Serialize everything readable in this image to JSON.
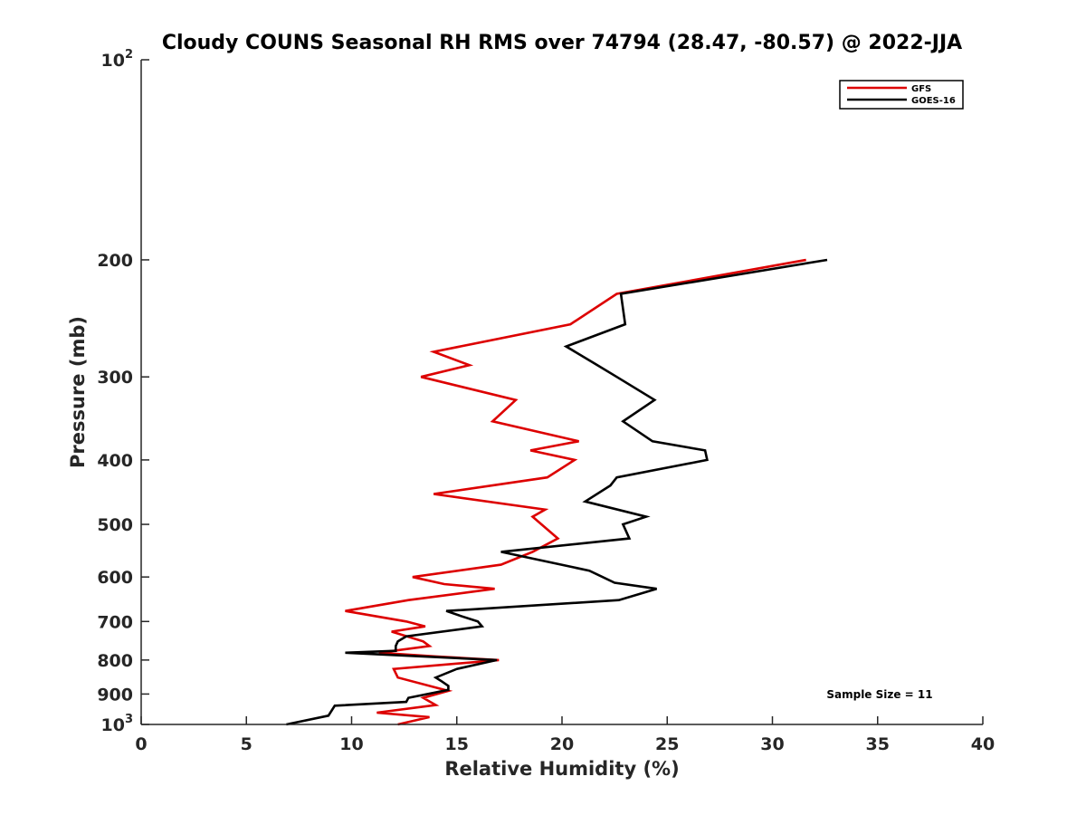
{
  "chart_data": {
    "type": "line",
    "title": "Cloudy COUNS Seasonal RH RMS over 74794 (28.47, -80.57) @ 2022-JJA",
    "xlabel": "Relative Humidity (%)",
    "ylabel": "Pressure (mb)",
    "xlim": [
      0,
      40
    ],
    "ylim": [
      100,
      1000
    ],
    "yscale": "log",
    "y_reversed": true,
    "xticks": [
      0,
      5,
      10,
      15,
      20,
      25,
      30,
      35,
      40
    ],
    "xtick_labels": [
      "0",
      "5",
      "10",
      "15",
      "20",
      "25",
      "30",
      "35",
      "40"
    ],
    "yticks": [
      100,
      200,
      300,
      400,
      500,
      600,
      700,
      800,
      900,
      1000
    ],
    "ytick_labels": [
      {
        "base": "10",
        "exp": "2"
      },
      {
        "base": "200",
        "exp": ""
      },
      {
        "base": "300",
        "exp": ""
      },
      {
        "base": "400",
        "exp": ""
      },
      {
        "base": "500",
        "exp": ""
      },
      {
        "base": "600",
        "exp": ""
      },
      {
        "base": "700",
        "exp": ""
      },
      {
        "base": "800",
        "exp": ""
      },
      {
        "base": "900",
        "exp": ""
      },
      {
        "base": "10",
        "exp": "3"
      }
    ],
    "legend_position": "top-right",
    "annotation": "Sample Size = 11",
    "series": [
      {
        "name": "GFS",
        "color": "#dd0000",
        "points": [
          [
            31.6,
            200
          ],
          [
            22.6,
            225
          ],
          [
            20.4,
            250
          ],
          [
            13.9,
            275
          ],
          [
            15.6,
            288
          ],
          [
            13.3,
            300
          ],
          [
            17.8,
            325
          ],
          [
            16.7,
            350
          ],
          [
            20.8,
            375
          ],
          [
            18.5,
            387
          ],
          [
            20.6,
            400
          ],
          [
            19.3,
            425
          ],
          [
            13.9,
            450
          ],
          [
            19.2,
            475
          ],
          [
            18.6,
            487
          ],
          [
            19.8,
            525
          ],
          [
            18.6,
            550
          ],
          [
            17.1,
            575
          ],
          [
            12.9,
            600
          ],
          [
            14.4,
            615
          ],
          [
            16.8,
            625
          ],
          [
            12.7,
            650
          ],
          [
            9.7,
            675
          ],
          [
            12.6,
            700
          ],
          [
            13.5,
            712
          ],
          [
            11.9,
            725
          ],
          [
            13.4,
            750
          ],
          [
            13.7,
            762
          ],
          [
            11.3,
            780
          ],
          [
            14.0,
            790
          ],
          [
            17.0,
            800
          ],
          [
            12.0,
            825
          ],
          [
            12.2,
            850
          ],
          [
            14.6,
            890
          ],
          [
            13.4,
            912
          ],
          [
            14.0,
            935
          ],
          [
            11.2,
            960
          ],
          [
            13.7,
            975
          ],
          [
            12.2,
            1000
          ]
        ]
      },
      {
        "name": "GOES-16",
        "color": "#000000",
        "points": [
          [
            32.6,
            200
          ],
          [
            22.8,
            225
          ],
          [
            23.0,
            250
          ],
          [
            20.2,
            270
          ],
          [
            21.6,
            287
          ],
          [
            22.6,
            300
          ],
          [
            24.4,
            325
          ],
          [
            22.9,
            350
          ],
          [
            24.3,
            375
          ],
          [
            26.8,
            387
          ],
          [
            26.9,
            400
          ],
          [
            22.6,
            425
          ],
          [
            22.3,
            437
          ],
          [
            21.1,
            462
          ],
          [
            24.0,
            487
          ],
          [
            22.9,
            500
          ],
          [
            23.2,
            525
          ],
          [
            17.1,
            550
          ],
          [
            21.3,
            587
          ],
          [
            22.5,
            612
          ],
          [
            24.5,
            625
          ],
          [
            22.7,
            650
          ],
          [
            14.5,
            675
          ],
          [
            15.2,
            687
          ],
          [
            16.0,
            700
          ],
          [
            16.2,
            712
          ],
          [
            12.6,
            737
          ],
          [
            12.2,
            750
          ],
          [
            12.1,
            762
          ],
          [
            12.1,
            775
          ],
          [
            9.7,
            780
          ],
          [
            16.9,
            800
          ],
          [
            15.0,
            825
          ],
          [
            14.0,
            850
          ],
          [
            14.3,
            862
          ],
          [
            14.6,
            875
          ],
          [
            14.6,
            887
          ],
          [
            12.7,
            912
          ],
          [
            12.6,
            925
          ],
          [
            9.2,
            937
          ],
          [
            8.9,
            970
          ],
          [
            6.9,
            1000
          ]
        ]
      }
    ]
  }
}
